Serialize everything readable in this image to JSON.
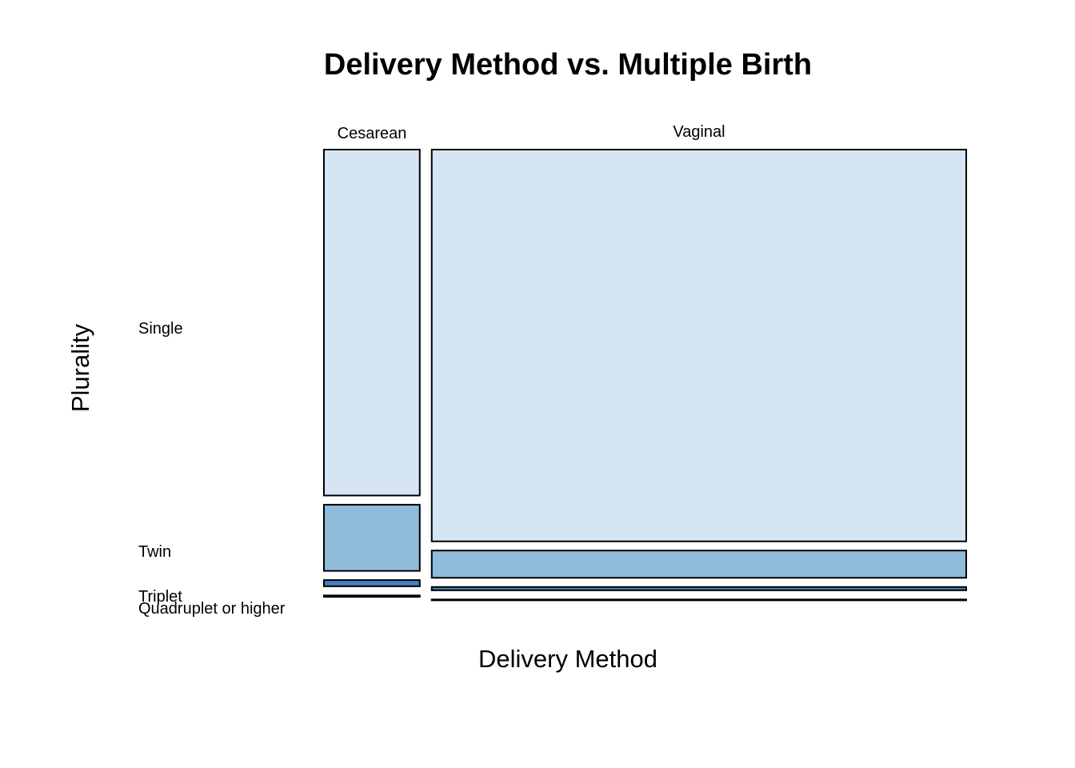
{
  "chart_data": {
    "type": "mosaic",
    "title": "Delivery Method vs. Multiple Birth",
    "xlabel": "Delivery Method",
    "ylabel": "Plurality",
    "columns": [
      "Cesarean",
      "Vaginal"
    ],
    "rows": [
      "Single",
      "Twin",
      "Triplet",
      "Quadruplet or higher"
    ],
    "column_proportions": [
      0.152,
      0.848
    ],
    "cell_proportions": {
      "Cesarean": [
        0.8,
        0.153,
        0.0143,
        0.0032
      ],
      "Vaginal": [
        0.906,
        0.063,
        0.0076,
        0.0019
      ]
    },
    "colors": {
      "Single": "#d6e5f4",
      "Twin": "#8fbcd9",
      "Triplet": "#4182bd",
      "Quadruplet or higher": "#08509b"
    },
    "border_color": "#000000",
    "legend": "none"
  }
}
